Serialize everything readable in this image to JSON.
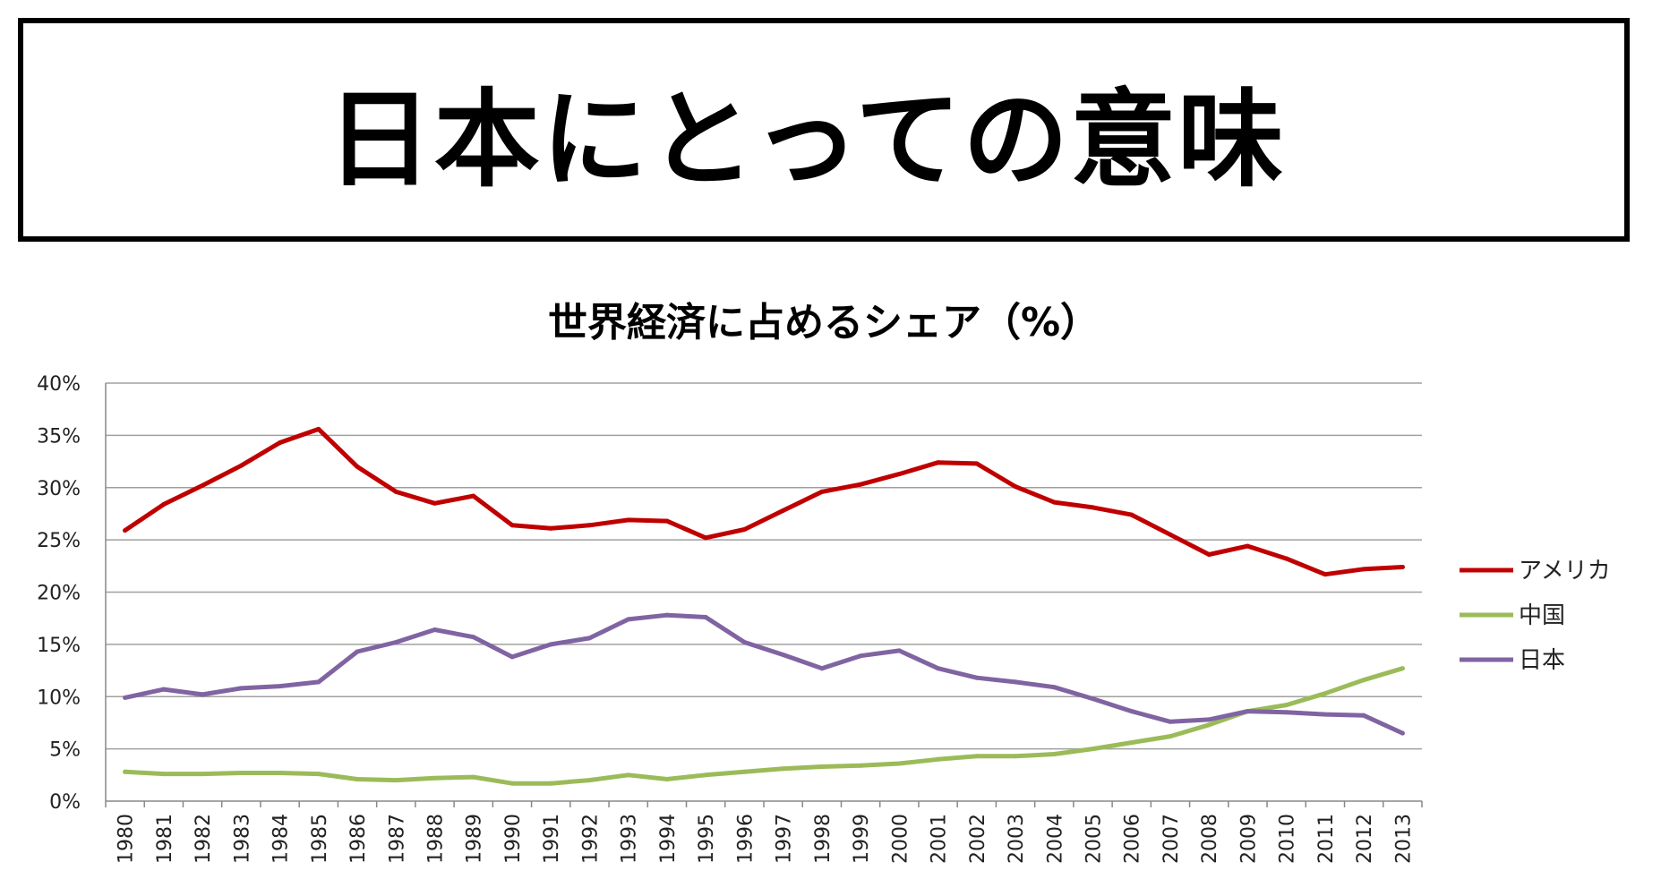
{
  "slide": {
    "title": "日本にとっての意味"
  },
  "chart_data": {
    "type": "line",
    "title": "世界経済に占めるシェア（%）",
    "xlabel": "",
    "ylabel": "",
    "ylim": [
      0,
      40
    ],
    "ytick_labels": [
      "0%",
      "5%",
      "10%",
      "15%",
      "20%",
      "25%",
      "30%",
      "35%",
      "40%"
    ],
    "grid": true,
    "legend_position": "right",
    "categories": [
      "1980",
      "1981",
      "1982",
      "1983",
      "1984",
      "1985",
      "1986",
      "1987",
      "1988",
      "1989",
      "1990",
      "1991",
      "1992",
      "1993",
      "1994",
      "1995",
      "1996",
      "1997",
      "1998",
      "1999",
      "2000",
      "2001",
      "2002",
      "2003",
      "2004",
      "2005",
      "2006",
      "2007",
      "2008",
      "2009",
      "2010",
      "2011",
      "2012",
      "2013"
    ],
    "series": [
      {
        "name": "アメリカ",
        "color": "#c00000",
        "values": [
          25.9,
          28.4,
          30.2,
          32.1,
          34.3,
          35.6,
          32.0,
          29.6,
          28.5,
          29.2,
          26.4,
          26.1,
          26.4,
          26.9,
          26.8,
          25.2,
          26.0,
          27.8,
          29.6,
          30.3,
          31.3,
          32.4,
          32.3,
          30.1,
          28.6,
          28.1,
          27.4,
          25.5,
          23.6,
          24.4,
          23.2,
          21.7,
          22.2,
          22.4
        ]
      },
      {
        "name": "中国",
        "color": "#9bbb59",
        "values": [
          2.8,
          2.6,
          2.6,
          2.7,
          2.7,
          2.6,
          2.1,
          2.0,
          2.2,
          2.3,
          1.7,
          1.7,
          2.0,
          2.5,
          2.1,
          2.5,
          2.8,
          3.1,
          3.3,
          3.4,
          3.6,
          4.0,
          4.3,
          4.3,
          4.5,
          5.0,
          5.6,
          6.2,
          7.3,
          8.6,
          9.2,
          10.3,
          11.6,
          12.7
        ]
      },
      {
        "name": "日本",
        "color": "#8064a2",
        "values": [
          9.9,
          10.7,
          10.2,
          10.8,
          11.0,
          11.4,
          14.3,
          15.2,
          16.4,
          15.7,
          13.8,
          15.0,
          15.6,
          17.4,
          17.8,
          17.6,
          15.2,
          14.0,
          12.7,
          13.9,
          14.4,
          12.7,
          11.8,
          11.4,
          10.9,
          9.8,
          8.6,
          7.6,
          7.8,
          8.6,
          8.5,
          8.3,
          8.2,
          6.5
        ]
      }
    ]
  }
}
